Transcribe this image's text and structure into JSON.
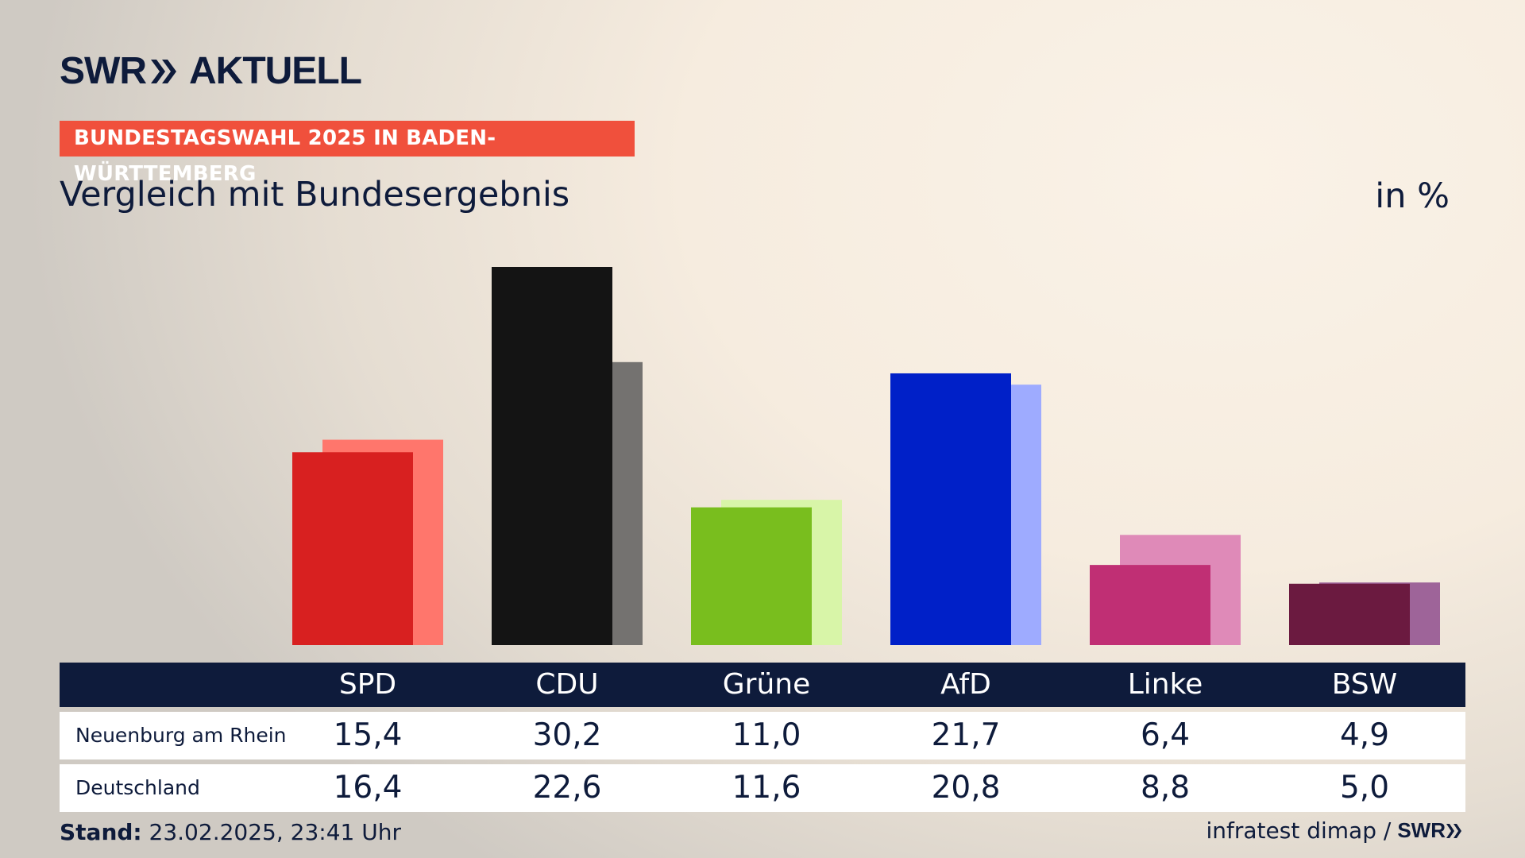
{
  "brand": {
    "name": "SWR",
    "product": "AKTUELL"
  },
  "tag": "BUNDESTAGSWAHL 2025 IN BADEN-WÜRTTEMBERG",
  "title": "Vergleich mit Bundesergebnis",
  "unit": "in %",
  "chart_data": {
    "type": "bar",
    "title": "Vergleich mit Bundesergebnis",
    "ylabel": "in %",
    "ylim": [
      0,
      30.2
    ],
    "categories": [
      "SPD",
      "CDU",
      "Grüne",
      "AfD",
      "Linke",
      "BSW"
    ],
    "series": [
      {
        "name": "Neuenburg am Rhein",
        "values": [
          15.4,
          30.2,
          11.0,
          21.7,
          6.4,
          4.9
        ],
        "labels": [
          "15,4",
          "30,2",
          "11,0",
          "21,7",
          "6,4",
          "4,9"
        ]
      },
      {
        "name": "Deutschland",
        "values": [
          16.4,
          22.6,
          11.6,
          20.8,
          8.8,
          5.0
        ],
        "labels": [
          "16,4",
          "22,6",
          "11,6",
          "20,8",
          "8,8",
          "5,0"
        ]
      }
    ],
    "colors": {
      "primary": [
        "#d82020",
        "#141414",
        "#79be1e",
        "#0020c8",
        "#c02f74",
        "#6b1a40"
      ],
      "secondary": [
        "#ff766c",
        "#747270",
        "#d8f5a8",
        "#9eabff",
        "#df8ab8",
        "#9e6499"
      ]
    }
  },
  "footer": {
    "stand_label": "Stand:",
    "stand_value": "23.02.2025, 23:41 Uhr",
    "source": "infratest dimap /",
    "source_brand": "SWR"
  }
}
